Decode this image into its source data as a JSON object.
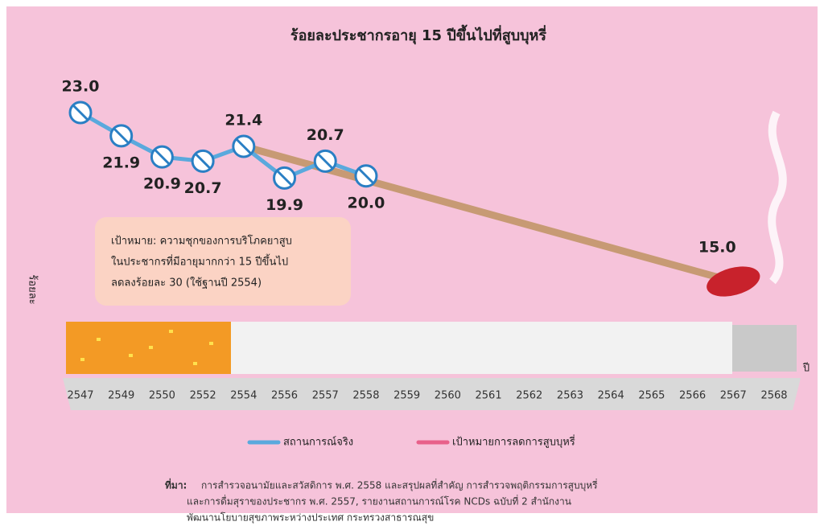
{
  "chart_data": {
    "type": "line",
    "title": "ร้อยละประชากรอายุ 15 ปีขึ้นไปที่สูบบุหรี่",
    "y_label": "ร้อยละ",
    "x_label": "ปี",
    "categories": [
      "2547",
      "2549",
      "2550",
      "2552",
      "2554",
      "2556",
      "2557",
      "2558",
      "2559",
      "2560",
      "2561",
      "2562",
      "2563",
      "2564",
      "2565",
      "2566",
      "2567",
      "2568"
    ],
    "series": [
      {
        "name": "สถานการณ์จริง",
        "color": "#5aa9dd",
        "values": [
          23.0,
          21.9,
          20.9,
          20.7,
          21.4,
          19.9,
          20.7,
          20.0,
          null,
          null,
          null,
          null,
          null,
          null,
          null,
          null,
          null,
          null
        ],
        "value_labels": [
          "23.0",
          "21.9",
          "20.9",
          "20.7",
          "21.4",
          "19.9",
          "20.7",
          "20.0",
          null,
          null,
          null,
          null,
          null,
          null,
          null,
          null,
          null,
          null
        ]
      },
      {
        "name": "เป้าหมายการลดการสูบบุหรี่",
        "color": "#e8608a",
        "values": [
          null,
          null,
          null,
          null,
          21.4,
          null,
          null,
          null,
          null,
          null,
          null,
          null,
          null,
          null,
          null,
          null,
          15.0,
          null
        ],
        "value_labels": [
          null,
          null,
          null,
          null,
          "21.4",
          null,
          null,
          null,
          null,
          null,
          null,
          null,
          null,
          null,
          null,
          null,
          "15.0",
          null
        ]
      }
    ],
    "annotation": [
      "เป้าหมาย: ความชุกของการบริโภคยาสูบ",
      "ในประชากรที่มีอายุมากกว่า 15 ปีขึ้นไป",
      "ลดลงร้อยละ 30 (ใช้ฐานปี 2554)"
    ]
  },
  "source": {
    "label": "ที่มา:",
    "lines": [
      "การสำรวจอนามัยและสวัสดิการ พ.ศ. 2558 และสรุปผลที่สำคัญ การสำรวจพฤติกรรมการสูบบุหรี่",
      "และการดื่มสุราของประชากร พ.ศ. 2557, รายงานสถานการณ์โรค NCDs ฉบับที่ 2 สำนักงาน",
      "พัฒนานโยบายสุขภาพระหว่างประเทศ กระทรวงสาธารณสุข"
    ]
  }
}
